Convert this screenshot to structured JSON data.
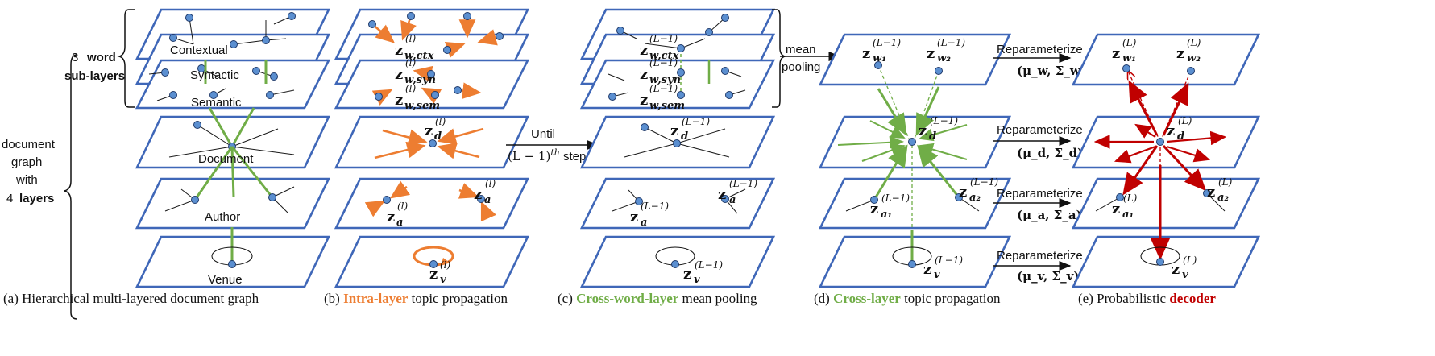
{
  "left_brace": {
    "word_sublayers_prefix": "3",
    "word_sublayers_bold": "word",
    "word_sublayers_second": "sub-layers",
    "doc_graph_lines": [
      "document",
      "graph",
      "with"
    ],
    "four_layers_prefix": "4",
    "four_layers_bold": "layers"
  },
  "panel_a": {
    "layer_labels": [
      "Contextual",
      "Syntactic",
      "Semantic",
      "Document",
      "Author",
      "Venue"
    ],
    "caption": "(a) Hierarchical multi-layered document graph"
  },
  "panel_b": {
    "z_main": "z",
    "sup_l": "(l)",
    "sub_ctx": "w,ctx",
    "sub_syn": "w,syn",
    "sub_sem": "w,sem",
    "sub_d": "d",
    "sub_a1": "a",
    "sub_a2": "a",
    "sub_v": "v",
    "caption_prefix": "(b) ",
    "caption_colored": "Intra-layer",
    "caption_suffix": " topic propagation"
  },
  "until_arrow": {
    "line1": "Until",
    "line2_prefix": "(L − 1)",
    "line2_sup": "th",
    "line2_suffix": " step"
  },
  "panel_c": {
    "sup_L1": "(L−1)",
    "caption_prefix": "(c) ",
    "caption_colored": "Cross-word-layer",
    "caption_suffix": " mean pooling"
  },
  "mean_pooling": {
    "line1": "mean",
    "line2": "pooling"
  },
  "panel_d": {
    "caption_prefix": "(d) ",
    "caption_colored": "Cross-layer",
    "caption_suffix": " topic propagation"
  },
  "reparam": {
    "label": "Reparameterize",
    "w": "(μ_w, Σ_w)",
    "d": "(μ_d, Σ_d)",
    "a": "(μ_a, Σ_a)",
    "v": "(μ_v, Σ_v)"
  },
  "panel_e": {
    "sup_L": "(L)",
    "caption_prefix": "(e) Probabilistic ",
    "caption_colored": "decoder"
  },
  "colors": {
    "plane": "#3f67b8",
    "orange": "#ed7d31",
    "green": "#70ad47",
    "red": "#c00000",
    "node": "#5b8fd0"
  }
}
